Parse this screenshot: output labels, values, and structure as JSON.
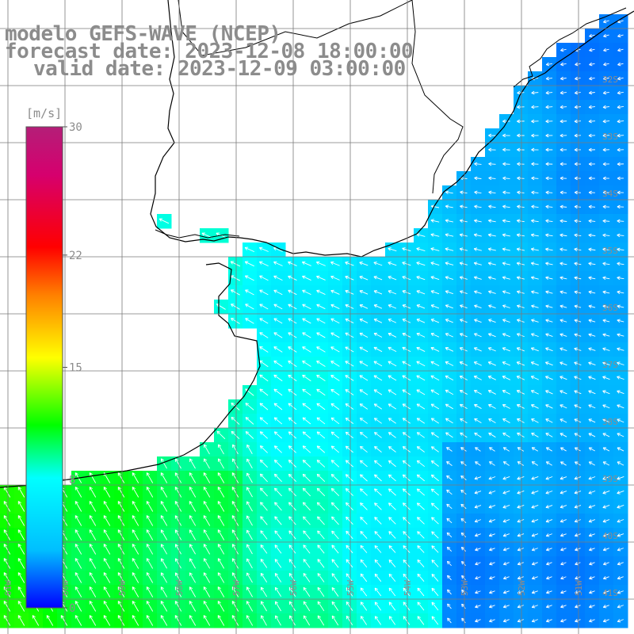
{
  "title": {
    "line1": "modelo GEFS-WAVE (NCEP)",
    "line2": "forecast date: 2023-12-08 18:00:00",
    "line3": "valid date: 2023-12-09 03:00:00"
  },
  "colorbar": {
    "unit": "[m/s]",
    "ticks": [
      "30",
      "22",
      "15",
      "8",
      "0"
    ],
    "tick_values": [
      30,
      22,
      15,
      8,
      0
    ],
    "min": 0,
    "max": 30,
    "stops": [
      "#0000ff",
      "#00bfff",
      "#00ffff",
      "#00ff00",
      "#ffff00",
      "#ff8000",
      "#ff0000",
      "#d6006e",
      "#b41e78"
    ]
  },
  "grid": {
    "lat_labels": [
      "32S",
      "33S",
      "34S",
      "35S",
      "36S",
      "37S",
      "38S",
      "39S",
      "40S",
      "41S"
    ],
    "lon_labels": [
      "61W",
      "60W",
      "59W",
      "58W",
      "57W",
      "56W",
      "55W",
      "54W",
      "53W",
      "52W",
      "51W"
    ]
  },
  "colors": {
    "land": "#ffffff",
    "coast": "#000000",
    "grid": "#7a7a7a",
    "arrows": "#ffffff",
    "text": "#8c8c8c"
  }
}
